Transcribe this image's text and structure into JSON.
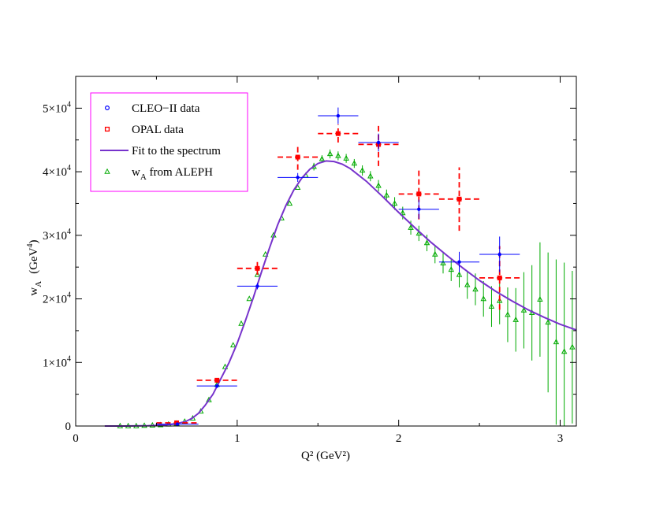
{
  "chart_data": {
    "type": "scatter",
    "title": "",
    "xlabel": "Q² (GeV²)",
    "ylabel": "w",
    "ylabel_sub": "A",
    "ylabel_unit_open": "(GeV",
    "ylabel_unit_sup": "4",
    "ylabel_unit_close": ")",
    "xlim": [
      0,
      3.1
    ],
    "ylim": [
      0,
      55000
    ],
    "x_ticks": [
      {
        "value": 0,
        "label": "0"
      },
      {
        "value": 1,
        "label": "1"
      },
      {
        "value": 2,
        "label": "2"
      },
      {
        "value": 3,
        "label": "3"
      }
    ],
    "y_ticks": [
      {
        "value": 0,
        "label": "0",
        "mant": "",
        "base": "",
        "exp": ""
      },
      {
        "value": 10000,
        "label": "",
        "mant": "1",
        "base": "×10",
        "exp": "4"
      },
      {
        "value": 20000,
        "label": "",
        "mant": "2",
        "base": "×10",
        "exp": "4"
      },
      {
        "value": 30000,
        "label": "",
        "mant": "3",
        "base": "×10",
        "exp": "4"
      },
      {
        "value": 40000,
        "label": "",
        "mant": "4",
        "base": "×10",
        "exp": "4"
      },
      {
        "value": 50000,
        "label": "",
        "mant": "5",
        "base": "×10",
        "exp": "4"
      }
    ],
    "legend": {
      "placement": "top-left",
      "border_color": "#ff00ff",
      "entries": [
        {
          "key": "cleo",
          "label": "CLEO−II data",
          "sub": "",
          "rest": ""
        },
        {
          "key": "opal",
          "label": "OPAL data",
          "sub": "",
          "rest": ""
        },
        {
          "key": "fit",
          "label": "Fit to the spectrum",
          "sub": "",
          "rest": ""
        },
        {
          "key": "aleph",
          "label": "w",
          "sub": "A",
          "rest": " from ALEPH"
        }
      ]
    },
    "series": [
      {
        "name": "CLEO-II data",
        "key": "cleo",
        "color": "#0000ff",
        "marker": "circle",
        "points": [
          {
            "x": 0.63,
            "y": 300,
            "xerr": 0.13,
            "yerr": 100
          },
          {
            "x": 0.875,
            "y": 6300,
            "xerr": 0.125,
            "yerr": 300
          },
          {
            "x": 1.125,
            "y": 22000,
            "xerr": 0.125,
            "yerr": 500
          },
          {
            "x": 1.375,
            "y": 39100,
            "xerr": 0.125,
            "yerr": 700
          },
          {
            "x": 1.625,
            "y": 48800,
            "xerr": 0.125,
            "yerr": 1300
          },
          {
            "x": 1.875,
            "y": 44600,
            "xerr": 0.125,
            "yerr": 1400
          },
          {
            "x": 2.125,
            "y": 34100,
            "xerr": 0.125,
            "yerr": 1500
          },
          {
            "x": 2.375,
            "y": 25800,
            "xerr": 0.125,
            "yerr": 1600
          },
          {
            "x": 2.625,
            "y": 27000,
            "xerr": 0.125,
            "yerr": 2800
          }
        ]
      },
      {
        "name": "OPAL data",
        "key": "opal",
        "color": "#ff0000",
        "marker": "square",
        "points": [
          {
            "x": 0.625,
            "y": 500,
            "xerr": 0.125,
            "yerr": 150
          },
          {
            "x": 0.875,
            "y": 7200,
            "xerr": 0.125,
            "yerr": 300
          },
          {
            "x": 1.125,
            "y": 24800,
            "xerr": 0.125,
            "yerr": 1000
          },
          {
            "x": 1.375,
            "y": 42300,
            "xerr": 0.125,
            "yerr": 2000
          },
          {
            "x": 1.625,
            "y": 46000,
            "xerr": 0.125,
            "yerr": 1400
          },
          {
            "x": 1.875,
            "y": 44300,
            "xerr": 0.125,
            "yerr": 3400
          },
          {
            "x": 2.125,
            "y": 36500,
            "xerr": 0.125,
            "yerr": 4000
          },
          {
            "x": 2.375,
            "y": 35700,
            "xerr": 0.125,
            "yerr": 5000
          },
          {
            "x": 2.625,
            "y": 23300,
            "xerr": 0.125,
            "yerr": 5000
          }
        ]
      },
      {
        "name": "Fit to the spectrum",
        "key": "fit",
        "color": "#7733cc",
        "marker": "line",
        "points": [
          {
            "x": 0.18,
            "y": 0
          },
          {
            "x": 0.3,
            "y": 0
          },
          {
            "x": 0.45,
            "y": 50
          },
          {
            "x": 0.55,
            "y": 150
          },
          {
            "x": 0.62,
            "y": 350
          },
          {
            "x": 0.68,
            "y": 700
          },
          {
            "x": 0.72,
            "y": 1200
          },
          {
            "x": 0.76,
            "y": 2000
          },
          {
            "x": 0.8,
            "y": 3200
          },
          {
            "x": 0.85,
            "y": 5000
          },
          {
            "x": 0.9,
            "y": 7500
          },
          {
            "x": 0.95,
            "y": 10000
          },
          {
            "x": 1.0,
            "y": 13000
          },
          {
            "x": 1.05,
            "y": 16500
          },
          {
            "x": 1.1,
            "y": 20200
          },
          {
            "x": 1.15,
            "y": 24200
          },
          {
            "x": 1.2,
            "y": 28000
          },
          {
            "x": 1.25,
            "y": 31600
          },
          {
            "x": 1.3,
            "y": 34600
          },
          {
            "x": 1.35,
            "y": 37100
          },
          {
            "x": 1.4,
            "y": 39000
          },
          {
            "x": 1.45,
            "y": 40400
          },
          {
            "x": 1.5,
            "y": 41300
          },
          {
            "x": 1.55,
            "y": 41700
          },
          {
            "x": 1.6,
            "y": 41600
          },
          {
            "x": 1.65,
            "y": 41200
          },
          {
            "x": 1.7,
            "y": 40500
          },
          {
            "x": 1.8,
            "y": 38500
          },
          {
            "x": 1.9,
            "y": 36100
          },
          {
            "x": 2.0,
            "y": 33600
          },
          {
            "x": 2.1,
            "y": 31200
          },
          {
            "x": 2.2,
            "y": 28900
          },
          {
            "x": 2.3,
            "y": 26800
          },
          {
            "x": 2.4,
            "y": 24800
          },
          {
            "x": 2.5,
            "y": 22900
          },
          {
            "x": 2.6,
            "y": 21200
          },
          {
            "x": 2.7,
            "y": 19700
          },
          {
            "x": 2.8,
            "y": 18300
          },
          {
            "x": 2.9,
            "y": 17100
          },
          {
            "x": 3.0,
            "y": 16000
          },
          {
            "x": 3.1,
            "y": 15100
          }
        ]
      },
      {
        "name": "w_A from ALEPH",
        "key": "aleph",
        "color": "#00aa00",
        "marker": "triangle",
        "points": [
          {
            "x": 0.275,
            "y": 0,
            "yerr": 0
          },
          {
            "x": 0.325,
            "y": 0,
            "yerr": 0
          },
          {
            "x": 0.375,
            "y": 0,
            "yerr": 0
          },
          {
            "x": 0.425,
            "y": 50,
            "yerr": 0
          },
          {
            "x": 0.475,
            "y": 100,
            "yerr": 0
          },
          {
            "x": 0.525,
            "y": 150,
            "yerr": 0
          },
          {
            "x": 0.575,
            "y": 250,
            "yerr": 0
          },
          {
            "x": 0.625,
            "y": 400,
            "yerr": 0
          },
          {
            "x": 0.675,
            "y": 700,
            "yerr": 0
          },
          {
            "x": 0.725,
            "y": 1200,
            "yerr": 0
          },
          {
            "x": 0.775,
            "y": 2300,
            "yerr": 0
          },
          {
            "x": 0.825,
            "y": 4100,
            "yerr": 0
          },
          {
            "x": 0.875,
            "y": 6500,
            "yerr": 0
          },
          {
            "x": 0.925,
            "y": 9300,
            "yerr": 0
          },
          {
            "x": 0.975,
            "y": 12700,
            "yerr": 0
          },
          {
            "x": 1.025,
            "y": 16100,
            "yerr": 0
          },
          {
            "x": 1.075,
            "y": 20000,
            "yerr": 0
          },
          {
            "x": 1.125,
            "y": 23800,
            "yerr": 0
          },
          {
            "x": 1.175,
            "y": 27000,
            "yerr": 0
          },
          {
            "x": 1.225,
            "y": 30000,
            "yerr": 0
          },
          {
            "x": 1.275,
            "y": 32700,
            "yerr": 0
          },
          {
            "x": 1.325,
            "y": 35000,
            "yerr": 0
          },
          {
            "x": 1.375,
            "y": 37500,
            "yerr": 0
          },
          {
            "x": 1.425,
            "y": 39400,
            "yerr": 0
          },
          {
            "x": 1.475,
            "y": 40800,
            "yerr": 600
          },
          {
            "x": 1.525,
            "y": 42000,
            "yerr": 600
          },
          {
            "x": 1.575,
            "y": 42800,
            "yerr": 700
          },
          {
            "x": 1.625,
            "y": 42500,
            "yerr": 700
          },
          {
            "x": 1.675,
            "y": 42100,
            "yerr": 700
          },
          {
            "x": 1.725,
            "y": 41300,
            "yerr": 700
          },
          {
            "x": 1.775,
            "y": 40200,
            "yerr": 800
          },
          {
            "x": 1.825,
            "y": 39300,
            "yerr": 800
          },
          {
            "x": 1.875,
            "y": 37800,
            "yerr": 900
          },
          {
            "x": 1.925,
            "y": 36300,
            "yerr": 900
          },
          {
            "x": 1.975,
            "y": 35000,
            "yerr": 1000
          },
          {
            "x": 2.025,
            "y": 33500,
            "yerr": 1000
          },
          {
            "x": 2.075,
            "y": 31200,
            "yerr": 1100
          },
          {
            "x": 2.125,
            "y": 30300,
            "yerr": 1200
          },
          {
            "x": 2.175,
            "y": 28800,
            "yerr": 1300
          },
          {
            "x": 2.225,
            "y": 27000,
            "yerr": 1400
          },
          {
            "x": 2.275,
            "y": 25600,
            "yerr": 1600
          },
          {
            "x": 2.325,
            "y": 24600,
            "yerr": 1800
          },
          {
            "x": 2.375,
            "y": 23800,
            "yerr": 2000
          },
          {
            "x": 2.425,
            "y": 22200,
            "yerr": 2200
          },
          {
            "x": 2.475,
            "y": 21500,
            "yerr": 2500
          },
          {
            "x": 2.525,
            "y": 20000,
            "yerr": 2800
          },
          {
            "x": 2.575,
            "y": 18800,
            "yerr": 3200
          },
          {
            "x": 2.625,
            "y": 19700,
            "yerr": 3700
          },
          {
            "x": 2.675,
            "y": 17500,
            "yerr": 4300
          },
          {
            "x": 2.725,
            "y": 16700,
            "yerr": 5000
          },
          {
            "x": 2.775,
            "y": 18200,
            "yerr": 6000
          },
          {
            "x": 2.825,
            "y": 17800,
            "yerr": 7500
          },
          {
            "x": 2.875,
            "y": 19900,
            "yerr": 9000
          },
          {
            "x": 2.925,
            "y": 16300,
            "yerr": 11000
          },
          {
            "x": 2.975,
            "y": 13200,
            "yerr": 13000
          },
          {
            "x": 3.025,
            "y": 11700,
            "yerr": 14000
          },
          {
            "x": 3.075,
            "y": 12400,
            "yerr": 12000
          }
        ]
      }
    ]
  }
}
